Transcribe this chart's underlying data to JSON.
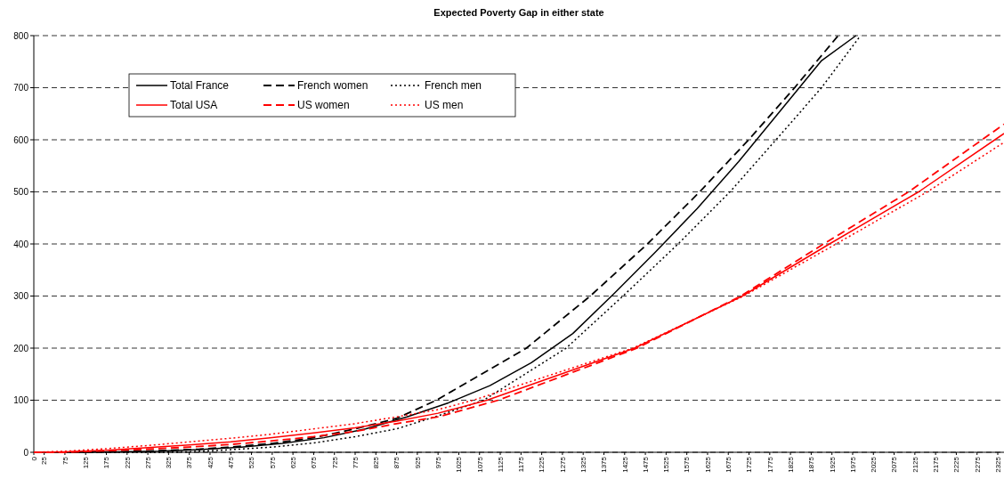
{
  "chart_data": {
    "type": "line",
    "title": "Expected Poverty Gap in either state",
    "xlim": [
      0,
      2340
    ],
    "xticks": [
      0,
      25,
      75,
      125,
      175,
      225,
      275,
      325,
      375,
      425,
      475,
      525,
      575,
      625,
      675,
      725,
      775,
      825,
      875,
      925,
      975,
      1025,
      1075,
      1125,
      1175,
      1225,
      1275,
      1325,
      1375,
      1425,
      1475,
      1525,
      1575,
      1625,
      1675,
      1725,
      1775,
      1825,
      1875,
      1925,
      1975,
      2025,
      2075,
      2125,
      2175,
      2225,
      2275,
      2325
    ],
    "ylim": [
      0,
      800
    ],
    "yticks": [
      0,
      100,
      200,
      300,
      400,
      500,
      600,
      700,
      800
    ],
    "grid": "y",
    "legend": "top left",
    "marker": "none",
    "series": [
      {
        "name": "Total France",
        "color": "#000000",
        "line_style": "solid",
        "x": [
          0,
          100,
          200,
          300,
          400,
          500,
          600,
          700,
          800,
          900,
          1000,
          1100,
          1200,
          1300,
          1400,
          1500,
          1600,
          1700,
          1800,
          1900,
          1983
        ],
        "values": [
          0,
          0,
          1,
          2,
          5,
          10,
          17,
          28,
          45,
          68,
          95,
          128,
          172,
          228,
          305,
          385,
          468,
          558,
          655,
          752,
          800
        ]
      },
      {
        "name": "French women",
        "color": "#000000",
        "line_style": "dashed",
        "x": [
          0,
          100,
          200,
          300,
          400,
          475,
          575,
          675,
          775,
          875,
          971,
          1188,
          1342,
          1480,
          1606,
          1724,
          1835,
          1940
        ],
        "values": [
          0,
          0,
          1,
          3,
          6,
          10,
          17,
          28,
          45,
          65,
          100,
          200,
          300,
          400,
          500,
          600,
          700,
          800
        ]
      },
      {
        "name": "French men",
        "color": "#000000",
        "line_style": "dotted",
        "x": [
          0,
          100,
          200,
          300,
          375,
          475,
          575,
          675,
          775,
          875,
          975,
          1085,
          1284,
          1421,
          1554,
          1679,
          1790,
          1900,
          1994
        ],
        "values": [
          0,
          0,
          0,
          0,
          1,
          5,
          10,
          18,
          30,
          45,
          70,
          100,
          200,
          300,
          400,
          500,
          600,
          700,
          800
        ]
      },
      {
        "name": "Total USA",
        "color": "#ff0000",
        "line_style": "solid",
        "x": [
          0,
          75,
          175,
          275,
          375,
          475,
          575,
          675,
          775,
          875,
          975,
          1093,
          1449,
          1709,
          1919,
          2134,
          2340
        ],
        "values": [
          0,
          1,
          4,
          9,
          14,
          20,
          28,
          37,
          47,
          60,
          75,
          100,
          200,
          300,
          400,
          500,
          612
        ]
      },
      {
        "name": "US women",
        "color": "#ff0000",
        "line_style": "dashed",
        "x": [
          0,
          75,
          175,
          275,
          375,
          475,
          575,
          675,
          775,
          875,
          975,
          1120,
          1455,
          1705,
          1905,
          2110,
          2340
        ],
        "values": [
          0,
          0,
          3,
          6,
          10,
          15,
          22,
          30,
          40,
          55,
          68,
          100,
          200,
          300,
          400,
          500,
          630
        ]
      },
      {
        "name": "US men",
        "color": "#ff0000",
        "line_style": "dotted",
        "x": [
          0,
          75,
          175,
          275,
          375,
          475,
          575,
          675,
          775,
          875,
          975,
          1060,
          1445,
          1712,
          1935,
          2155,
          2340
        ],
        "values": [
          0,
          2,
          7,
          13,
          20,
          27,
          35,
          45,
          55,
          68,
          82,
          100,
          200,
          300,
          400,
          500,
          595
        ]
      }
    ]
  }
}
